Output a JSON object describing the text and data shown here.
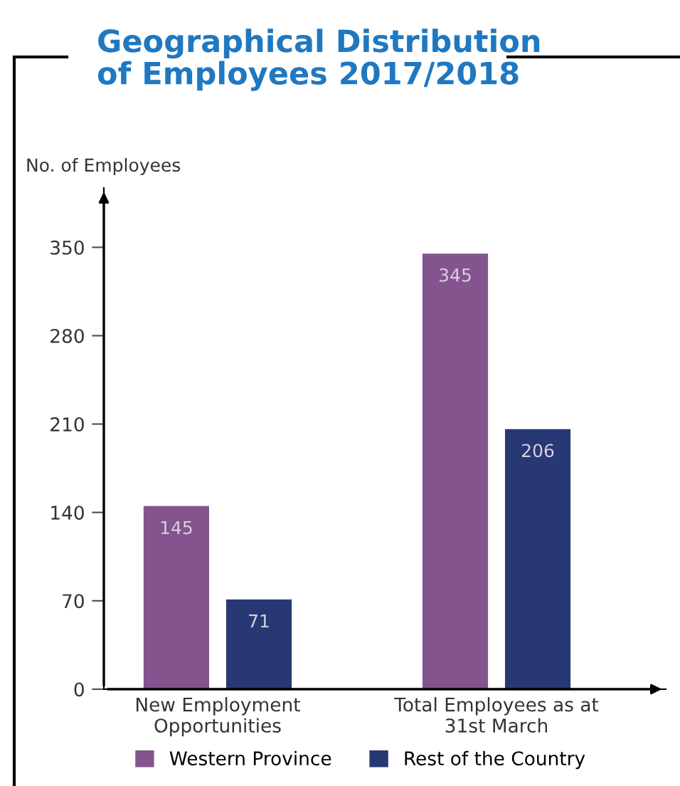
{
  "chart_data": {
    "type": "bar",
    "title": "Geographical Distribution\nof Employees 2017/2018",
    "ylabel": "No. of Employees",
    "categories": [
      "New Employment\nOpportunities",
      "Total Employees as at\n31st March"
    ],
    "series": [
      {
        "name": "Western Province",
        "color": "#84548e",
        "values": [
          145,
          345
        ]
      },
      {
        "name": "Rest of the Country",
        "color": "#283874",
        "values": [
          71,
          206
        ]
      }
    ],
    "ylim": [
      0,
      397
    ],
    "yticks": [
      0,
      70,
      140,
      210,
      280,
      350
    ],
    "data_labels": true,
    "grid": false,
    "legend": "bottom"
  }
}
